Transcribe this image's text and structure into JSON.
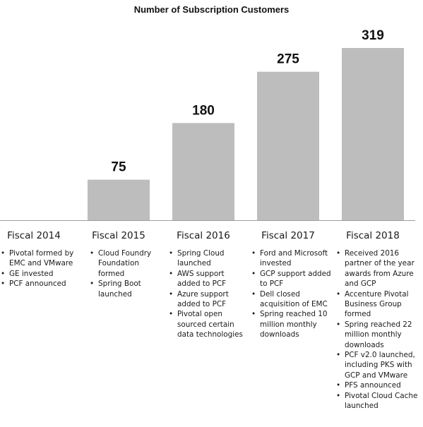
{
  "chart_data": {
    "type": "bar",
    "title": "Number of Subscription Customers",
    "categories": [
      "Fiscal 2014",
      "Fiscal 2015",
      "Fiscal 2016",
      "Fiscal 2017",
      "Fiscal 2018"
    ],
    "values": [
      null,
      75,
      180,
      275,
      319
    ],
    "data_labels": [
      "",
      "75",
      "180",
      "275",
      "319"
    ],
    "ylim": [
      0,
      319
    ],
    "grid": false,
    "legend": "none",
    "bar_color": "#bdbdbd",
    "axis_color": "#9e9e9e"
  },
  "notes": [
    [
      "Pivotal formed by EMC and VMware",
      "GE invested",
      "PCF announced"
    ],
    [
      "Cloud Foundry Foundation formed",
      "Spring Boot launched"
    ],
    [
      "Spring Cloud launched",
      "AWS support added to PCF",
      "Azure support added to PCF",
      "Pivotal open sourced certain data technologies"
    ],
    [
      "Ford and Microsoft invested",
      "GCP support added to PCF",
      "Dell closed acquisition of EMC",
      "Spring reached 10 million monthly downloads"
    ],
    [
      "Received 2016 partner of the year awards from Azure and GCP",
      "Accenture Pivotal Business Group formed",
      "Spring reached 22 million monthly downloads",
      "PCF v2.0 launched, including PKS with GCP and VMware",
      "PFS announced",
      "Pivotal Cloud Cache launched"
    ]
  ]
}
